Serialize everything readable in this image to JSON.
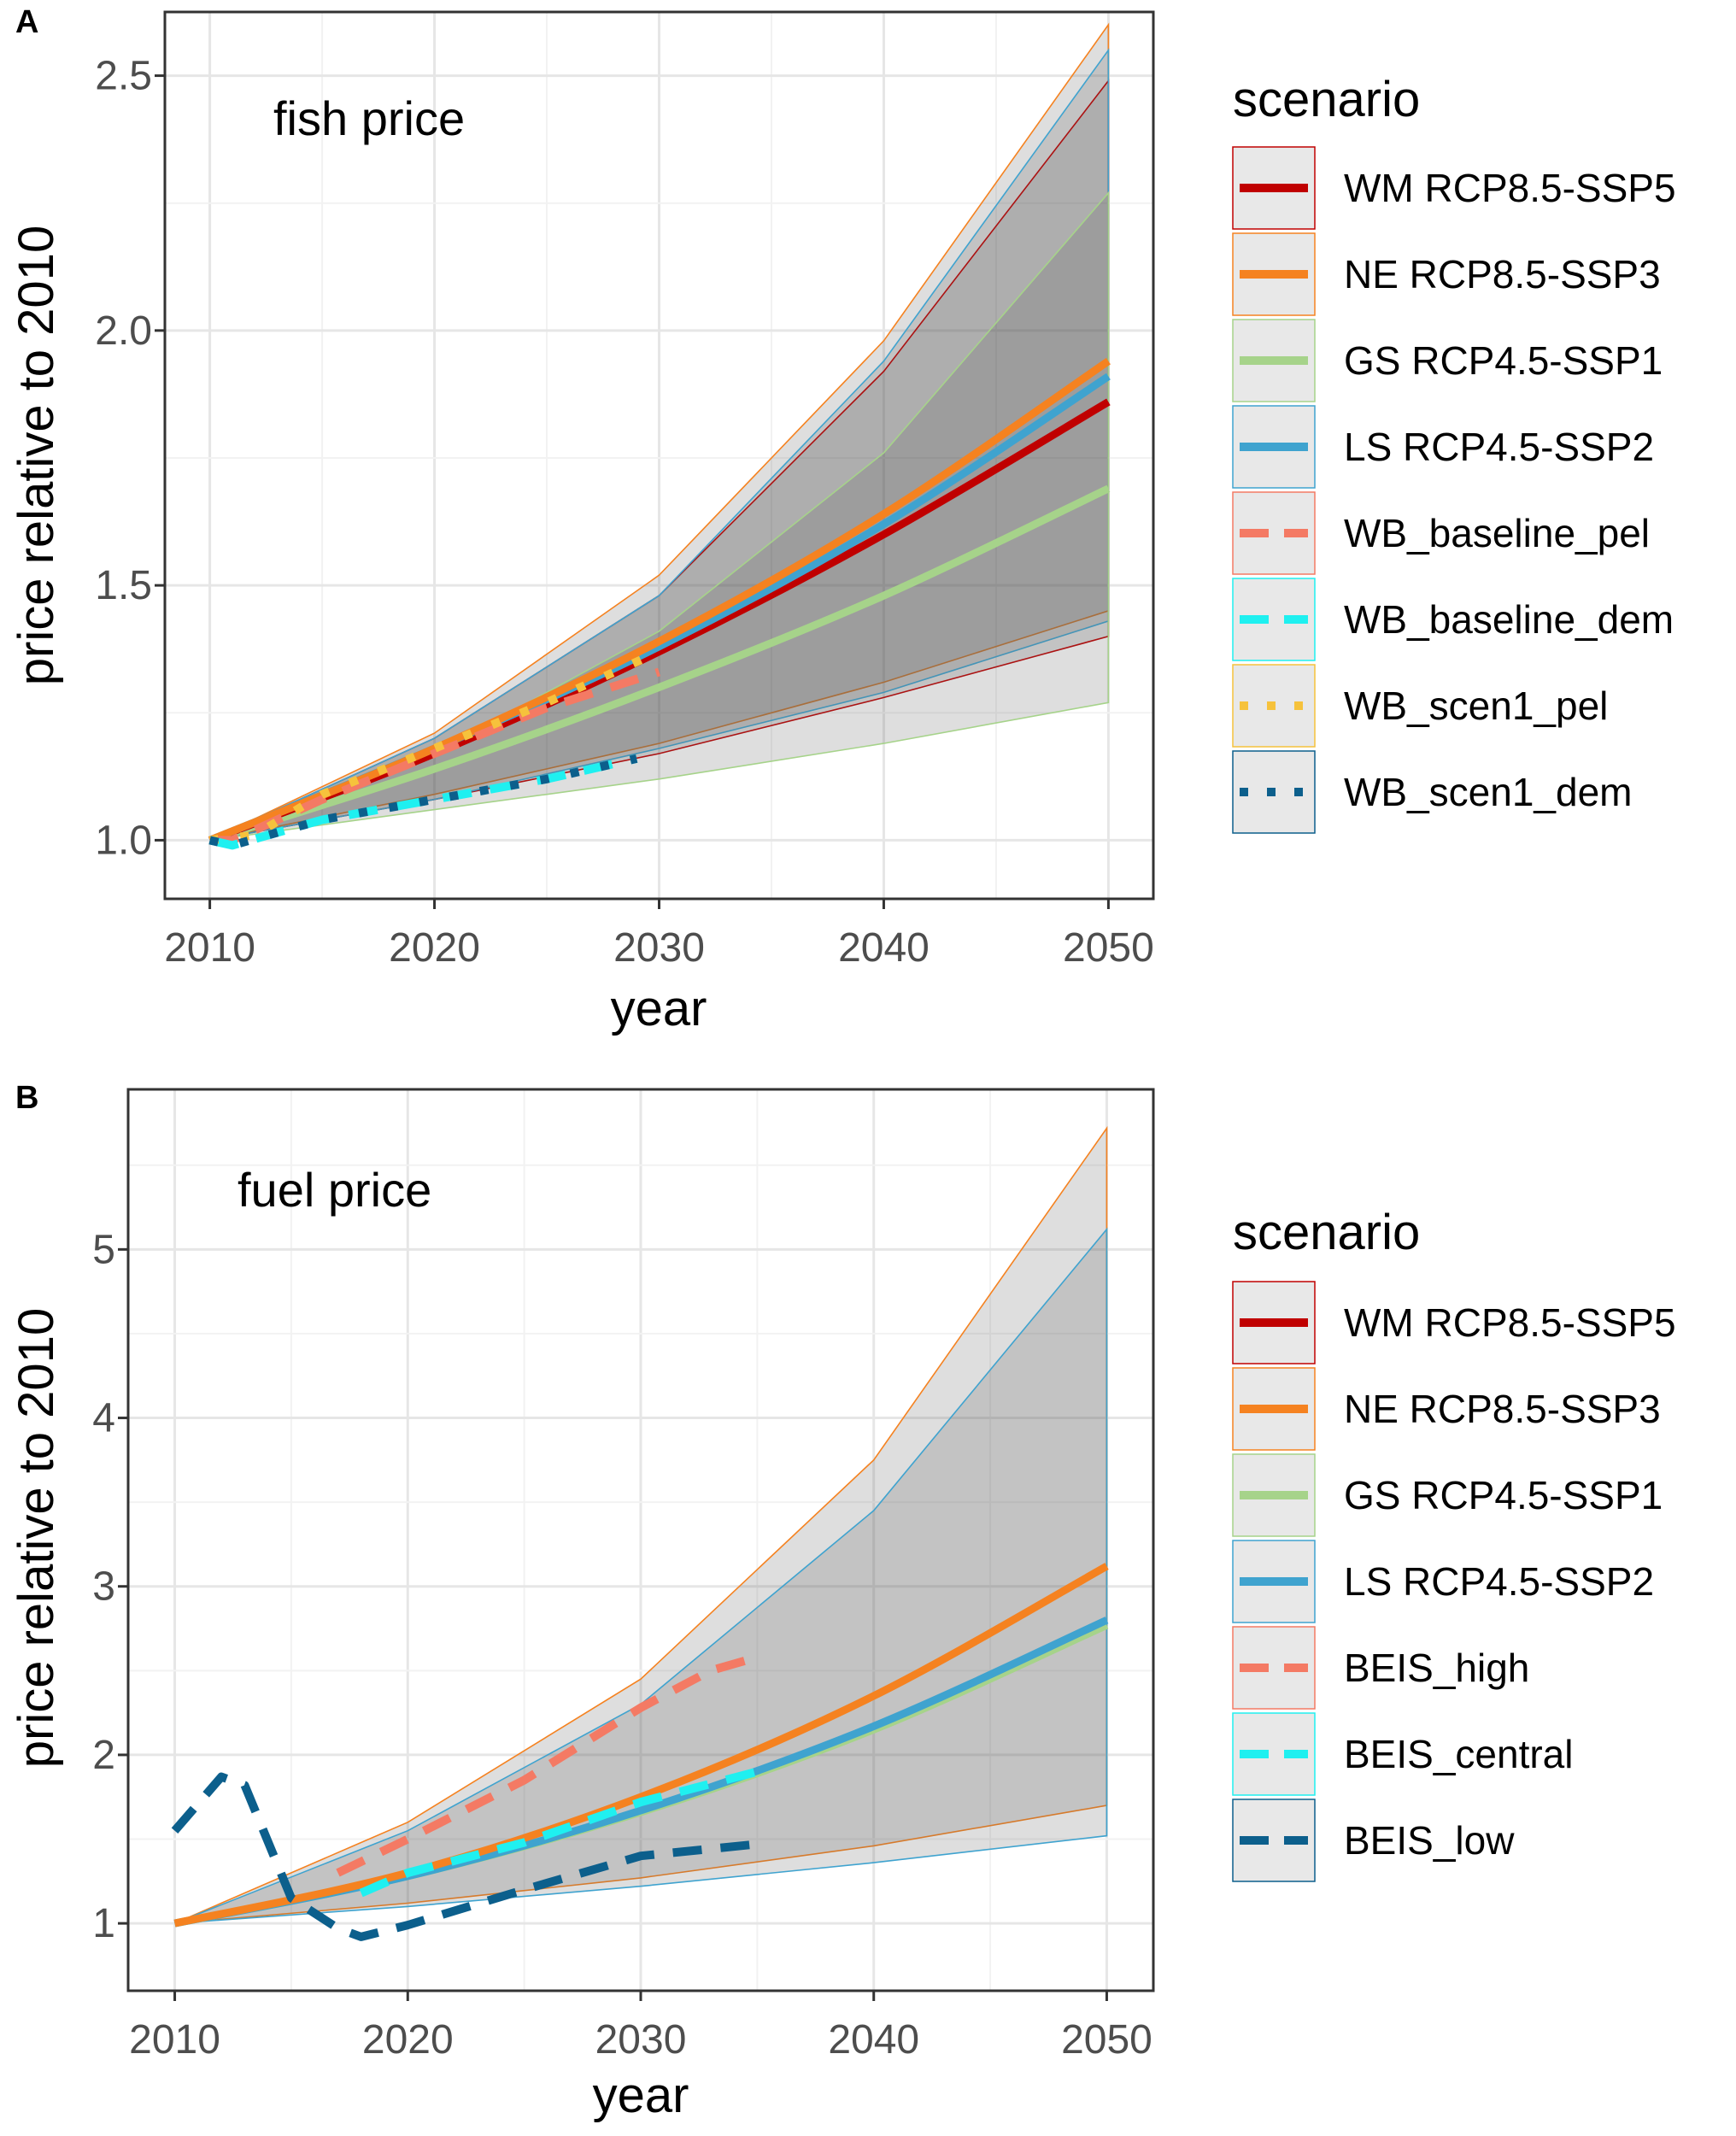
{
  "chart_data": [
    {
      "panel": "A",
      "type": "line",
      "annotation": "fish price",
      "xlabel": "year",
      "ylabel": "price relative to 2010",
      "xlim": [
        2008,
        2052
      ],
      "ylim": [
        0.885,
        2.625
      ],
      "x_ticks": [
        2010,
        2020,
        2030,
        2040,
        2050
      ],
      "x_tick_labels": [
        "2010",
        "2020",
        "2030",
        "2040",
        "2050"
      ],
      "y_ticks": [
        1.0,
        1.5,
        2.0,
        2.5
      ],
      "y_tick_labels": [
        "1.0",
        "1.5",
        "2.0",
        "2.5"
      ],
      "grid": true,
      "legend_title": "scenario",
      "legend": [
        {
          "label": "WM RCP8.5-SSP5",
          "color": "#c00000",
          "style": "solid"
        },
        {
          "label": "NE RCP8.5-SSP3",
          "color": "#f58220",
          "style": "solid"
        },
        {
          "label": "GS RCP4.5-SSP1",
          "color": "#a6d38a",
          "style": "solid"
        },
        {
          "label": "LS RCP4.5-SSP2",
          "color": "#3fa3cf",
          "style": "solid"
        },
        {
          "label": "WB_baseline_pel",
          "color": "#f47a64",
          "style": "dashed"
        },
        {
          "label": "WB_baseline_dem",
          "color": "#1ff0f0",
          "style": "dashed"
        },
        {
          "label": "WB_scen1_pel",
          "color": "#f6c23c",
          "style": "dotted"
        },
        {
          "label": "WB_scen1_dem",
          "color": "#0c5f8c",
          "style": "dotted"
        }
      ],
      "bands": [
        {
          "scenario": "NE RCP8.5-SSP3",
          "upper": [
            1.0,
            1.21,
            1.52,
            1.98,
            2.6
          ],
          "lower": [
            1.0,
            1.09,
            1.19,
            1.31,
            1.45
          ]
        },
        {
          "scenario": "WM RCP8.5-SSP5",
          "upper": [
            1.0,
            1.2,
            1.48,
            1.92,
            2.49
          ],
          "lower": [
            1.0,
            1.08,
            1.17,
            1.28,
            1.4
          ]
        },
        {
          "scenario": "LS RCP4.5-SSP2",
          "upper": [
            1.0,
            1.2,
            1.48,
            1.94,
            2.55
          ],
          "lower": [
            1.0,
            1.08,
            1.18,
            1.29,
            1.43
          ]
        },
        {
          "scenario": "GS RCP4.5-SSP1",
          "upper": [
            1.0,
            1.17,
            1.41,
            1.76,
            2.27
          ],
          "lower": [
            1.0,
            1.06,
            1.12,
            1.19,
            1.27
          ]
        }
      ],
      "band_x": [
        2010,
        2020,
        2030,
        2040,
        2050
      ],
      "series": [
        {
          "name": "GS RCP4.5-SSP1",
          "x": [
            2010,
            2020,
            2030,
            2040,
            2050
          ],
          "values": [
            1.0,
            1.14,
            1.3,
            1.48,
            1.69
          ]
        },
        {
          "name": "WM RCP8.5-SSP5",
          "x": [
            2010,
            2020,
            2030,
            2040,
            2050
          ],
          "values": [
            1.0,
            1.17,
            1.37,
            1.6,
            1.86
          ]
        },
        {
          "name": "LS RCP4.5-SSP2",
          "x": [
            2010,
            2020,
            2030,
            2040,
            2050
          ],
          "values": [
            1.0,
            1.18,
            1.38,
            1.62,
            1.91
          ]
        },
        {
          "name": "NE RCP8.5-SSP3",
          "x": [
            2010,
            2020,
            2030,
            2040,
            2050
          ],
          "values": [
            1.0,
            1.18,
            1.39,
            1.64,
            1.94
          ]
        },
        {
          "name": "WB_baseline_pel",
          "x": [
            2010,
            2011,
            2015,
            2020,
            2025,
            2030
          ],
          "values": [
            1.0,
            1.0,
            1.08,
            1.17,
            1.26,
            1.33
          ]
        },
        {
          "name": "WB_baseline_dem",
          "x": [
            2010,
            2011,
            2015,
            2020,
            2025,
            2029
          ],
          "values": [
            1.0,
            0.99,
            1.04,
            1.08,
            1.12,
            1.16
          ]
        },
        {
          "name": "WB_scen1_pel",
          "x": [
            2010,
            2012,
            2015,
            2020,
            2025,
            2030
          ],
          "values": [
            1.0,
            1.01,
            1.09,
            1.18,
            1.27,
            1.37
          ]
        },
        {
          "name": "WB_scen1_dem",
          "x": [
            2010,
            2011,
            2015,
            2020,
            2025,
            2029
          ],
          "values": [
            1.0,
            0.99,
            1.04,
            1.08,
            1.12,
            1.16
          ]
        }
      ]
    },
    {
      "panel": "B",
      "type": "line",
      "annotation": "fuel price",
      "xlabel": "year",
      "ylabel": "price relative to 2010",
      "xlim": [
        2008,
        2052
      ],
      "ylim": [
        0.6,
        5.95
      ],
      "x_ticks": [
        2010,
        2020,
        2030,
        2040,
        2050
      ],
      "x_tick_labels": [
        "2010",
        "2020",
        "2030",
        "2040",
        "2050"
      ],
      "y_ticks": [
        1,
        2,
        3,
        4,
        5
      ],
      "y_tick_labels": [
        "1",
        "2",
        "3",
        "4",
        "5"
      ],
      "grid": true,
      "legend_title": "scenario",
      "legend": [
        {
          "label": "WM RCP8.5-SSP5",
          "color": "#c00000",
          "style": "solid"
        },
        {
          "label": "NE RCP8.5-SSP3",
          "color": "#f58220",
          "style": "solid"
        },
        {
          "label": "GS RCP4.5-SSP1",
          "color": "#a6d38a",
          "style": "solid"
        },
        {
          "label": "LS RCP4.5-SSP2",
          "color": "#3fa3cf",
          "style": "solid"
        },
        {
          "label": "BEIS_high",
          "color": "#f47a64",
          "style": "dashed"
        },
        {
          "label": "BEIS_central",
          "color": "#1ff0f0",
          "style": "dashed"
        },
        {
          "label": "BEIS_low",
          "color": "#0c5f8c",
          "style": "dashed"
        }
      ],
      "bands": [
        {
          "scenario": "NE RCP8.5-SSP3",
          "upper": [
            1.0,
            1.6,
            2.45,
            3.75,
            5.72
          ],
          "lower": [
            1.0,
            1.12,
            1.27,
            1.46,
            1.7
          ]
        },
        {
          "scenario": "LS RCP4.5-SSP2",
          "upper": [
            1.0,
            1.55,
            2.3,
            3.45,
            5.12
          ],
          "lower": [
            1.0,
            1.1,
            1.22,
            1.36,
            1.52
          ]
        }
      ],
      "band_x": [
        2010,
        2020,
        2030,
        2040,
        2050
      ],
      "series": [
        {
          "name": "GS RCP4.5-SSP1",
          "x": [
            2010,
            2020,
            2030,
            2040,
            2050
          ],
          "values": [
            1.0,
            1.28,
            1.66,
            2.15,
            2.77
          ]
        },
        {
          "name": "LS RCP4.5-SSP2",
          "x": [
            2010,
            2020,
            2030,
            2040,
            2050
          ],
          "values": [
            1.0,
            1.28,
            1.67,
            2.17,
            2.8
          ]
        },
        {
          "name": "NE RCP8.5-SSP3",
          "x": [
            2010,
            2020,
            2030,
            2040,
            2050
          ],
          "values": [
            1.0,
            1.3,
            1.75,
            2.35,
            3.12
          ]
        },
        {
          "name": "BEIS_high",
          "x": [
            2017,
            2020,
            2025,
            2030,
            2033,
            2035
          ],
          "values": [
            1.3,
            1.5,
            1.85,
            2.28,
            2.5,
            2.58
          ]
        },
        {
          "name": "BEIS_central",
          "x": [
            2018,
            2020,
            2025,
            2030,
            2035
          ],
          "values": [
            1.18,
            1.3,
            1.48,
            1.72,
            1.9
          ]
        },
        {
          "name": "BEIS_low",
          "x": [
            2010,
            2012,
            2013,
            2015,
            2017,
            2018,
            2020,
            2025,
            2030,
            2035
          ],
          "values": [
            1.55,
            1.87,
            1.82,
            1.15,
            0.97,
            0.92,
            0.99,
            1.2,
            1.4,
            1.47
          ]
        }
      ]
    }
  ]
}
